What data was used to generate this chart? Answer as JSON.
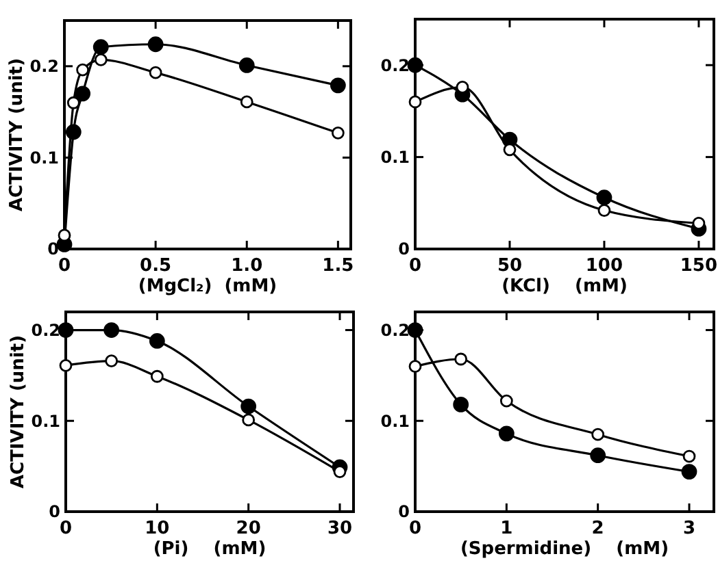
{
  "chart_data": [
    {
      "type": "line",
      "xlabel": "(MgCl₂)  (mM)",
      "ylabel": "ACTIVITY (unit)",
      "x": [
        0,
        0.05,
        0.1,
        0.2,
        0.5,
        1.0,
        1.5
      ],
      "xlim": [
        0,
        1.57
      ],
      "xticks": [
        0,
        {
          "value": 0.5,
          "label": "0.5"
        },
        {
          "value": 1,
          "label": "1.0"
        },
        {
          "value": 1.5,
          "label": "1.5"
        }
      ],
      "ylim": [
        0,
        0.25
      ],
      "yticks": [
        0,
        0.1,
        0.2
      ],
      "marker": "circle",
      "line_style": "solid",
      "series": [
        {
          "color": "#000000",
          "values": [
            0.005,
            0.128,
            0.17,
            0.221,
            0.224,
            0.201,
            0.179
          ]
        },
        {
          "color": "#000000",
          "values": [
            0.015,
            0.16,
            0.196,
            0.207,
            0.193,
            0.161,
            0.127
          ]
        }
      ]
    },
    {
      "type": "line",
      "xlabel": "(KCl)    (mM)",
      "x": [
        0,
        25,
        50,
        100,
        150
      ],
      "xlim": [
        0,
        158
      ],
      "xticks": [
        0,
        50,
        100,
        150
      ],
      "ylim": [
        0,
        0.25
      ],
      "yticks": [
        0,
        0.1,
        0.2
      ],
      "marker": "circle",
      "line_style": "solid",
      "series": [
        {
          "color": "#000000",
          "values": [
            0.2,
            0.168,
            0.119,
            0.056,
            0.022
          ]
        },
        {
          "color": "#000000",
          "values": [
            0.16,
            0.176,
            0.108,
            0.042,
            0.028
          ]
        }
      ]
    },
    {
      "type": "line",
      "xlabel": "(Pi)    (mM)",
      "ylabel": "ACTIVITY (unit)",
      "x": [
        0,
        5,
        10,
        20,
        30
      ],
      "xlim": [
        0,
        31.5
      ],
      "xticks": [
        0,
        10,
        20,
        30
      ],
      "ylim": [
        0,
        0.22
      ],
      "yticks": [
        0,
        0.1,
        0.2
      ],
      "marker": "circle",
      "line_style": "solid",
      "series": [
        {
          "color": "#000000",
          "values": [
            0.2,
            0.2,
            0.188,
            0.116,
            0.049
          ]
        },
        {
          "color": "#000000",
          "values": [
            0.161,
            0.166,
            0.149,
            0.101,
            0.044
          ]
        }
      ]
    },
    {
      "type": "line",
      "xlabel": "(Spermidine)    (mM)",
      "x": [
        0,
        0.5,
        1,
        2,
        3
      ],
      "xlim": [
        0,
        3.27
      ],
      "xticks": [
        0,
        1,
        2,
        3
      ],
      "ylim": [
        0,
        0.22
      ],
      "yticks": [
        0,
        0.1,
        0.2
      ],
      "marker": "circle",
      "line_style": "solid",
      "series": [
        {
          "color": "#000000",
          "values": [
            0.2,
            0.118,
            0.086,
            0.062,
            0.044
          ]
        },
        {
          "color": "#000000",
          "values": [
            0.16,
            0.168,
            0.122,
            0.085,
            0.061
          ]
        }
      ]
    }
  ]
}
